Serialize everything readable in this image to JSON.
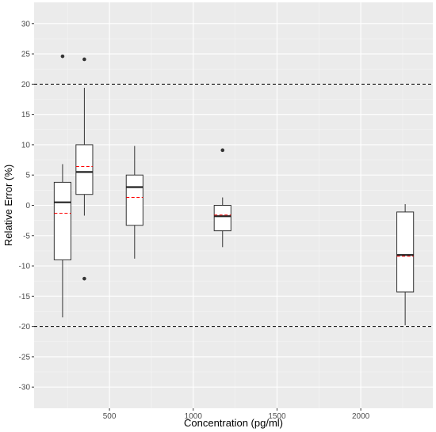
{
  "chart_data": {
    "type": "box",
    "xlabel": "Concentration (pg/ml)",
    "ylabel": "Relative Error (%)",
    "xlim": [
      50,
      2430
    ],
    "ylim": [
      -33.5,
      33.5
    ],
    "x_ticks": [
      500,
      1000,
      1500,
      2000
    ],
    "y_ticks": [
      -30,
      -25,
      -20,
      -15,
      -10,
      -5,
      0,
      5,
      10,
      15,
      20,
      25,
      30
    ],
    "x_tick_labels": [
      "500",
      "1000",
      "1500",
      "2000"
    ],
    "y_tick_labels": [
      "-30",
      "-25",
      "-20",
      "-15",
      "-10",
      "-5",
      "0",
      "5",
      "10",
      "15",
      "20",
      "25",
      "30"
    ],
    "grid": true,
    "reference_lines": [
      20,
      -20
    ],
    "mean_line_color": "#ff0000",
    "box_width": 100,
    "boxes": [
      {
        "x": 220,
        "whisker_low": -18.5,
        "q1": -9.0,
        "median": 0.5,
        "q3": 3.8,
        "whisker_high": 6.8,
        "mean": -1.3,
        "outliers": [
          24.6
        ]
      },
      {
        "x": 350,
        "whisker_low": -1.7,
        "q1": 1.8,
        "median": 5.5,
        "q3": 10.0,
        "whisker_high": 19.4,
        "mean": 6.4,
        "outliers": [
          24.1,
          -12.1
        ]
      },
      {
        "x": 650,
        "whisker_low": -8.8,
        "q1": -3.3,
        "median": 3.0,
        "q3": 5.0,
        "whisker_high": 9.8,
        "mean": 1.3,
        "outliers": []
      },
      {
        "x": 1175,
        "whisker_low": -6.9,
        "q1": -4.2,
        "median": -1.8,
        "q3": 0.0,
        "whisker_high": 1.3,
        "mean": -1.6,
        "outliers": [
          9.1
        ]
      },
      {
        "x": 2265,
        "whisker_low": -19.8,
        "q1": -14.3,
        "median": -8.2,
        "q3": -1.1,
        "whisker_high": 0.2,
        "mean": -8.4,
        "outliers": []
      }
    ]
  }
}
